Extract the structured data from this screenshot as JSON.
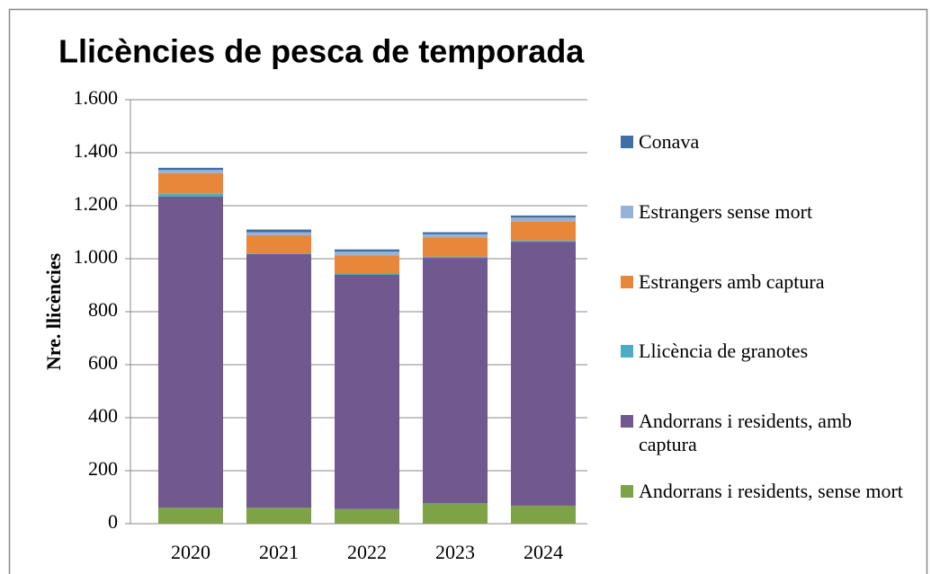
{
  "chart_data": {
    "type": "stacked_bar",
    "title": "Llicències de pesca de temporada",
    "y_label": "Nre. llicències",
    "categories": [
      "2020",
      "2021",
      "2022",
      "2023",
      "2024"
    ],
    "series": [
      {
        "name": "Andorrans i residents, sense mort",
        "color": "#7ea346",
        "values": [
          60,
          60,
          55,
          78,
          68
        ]
      },
      {
        "name": "Andorrans i residents, amb captura",
        "color": "#71588f",
        "values": [
          1175,
          957,
          884,
          925,
          996
        ]
      },
      {
        "name": "Llicència de granotes",
        "color": "#4bacc6",
        "values": [
          10,
          3,
          5,
          5,
          5
        ]
      },
      {
        "name": "Estrangers amb captura",
        "color": "#e8873a",
        "values": [
          78,
          68,
          69,
          73,
          70
        ]
      },
      {
        "name": "Estrangers sense mort",
        "color": "#95b3d7",
        "values": [
          12,
          12,
          14,
          11,
          16
        ]
      },
      {
        "name": "Conava",
        "color": "#3f6fa6",
        "values": [
          8,
          10,
          8,
          8,
          8
        ]
      }
    ],
    "ylim": [
      0,
      1600
    ],
    "yticks": [
      0,
      200,
      400,
      600,
      800,
      {
        "value": 1000,
        "label": "1.000"
      },
      {
        "value": 1200,
        "label": "1.200"
      },
      {
        "value": 1400,
        "label": "1.400"
      },
      {
        "value": 1600,
        "label": "1.600"
      }
    ],
    "grid": true,
    "legend": "right"
  }
}
